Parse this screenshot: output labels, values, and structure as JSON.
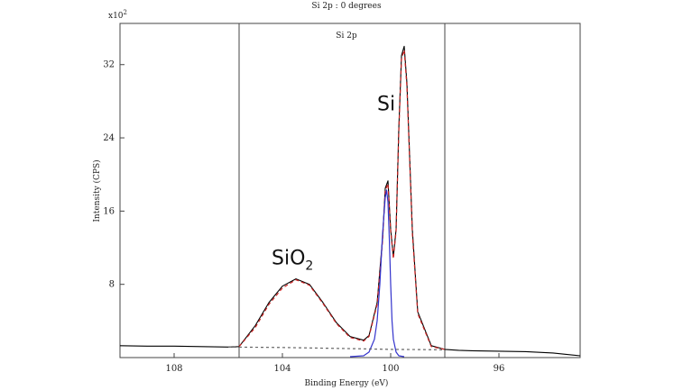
{
  "chart_data": {
    "type": "line",
    "title": "Si 2p : 0 degrees",
    "region_label": "Si 2p",
    "xlabel": "Binding Energy (eV)",
    "ylabel": "Intensity (CPS)",
    "y_multiplier": "x10",
    "y_multiplier_exp": "2",
    "xlim": [
      110.0,
      93.0
    ],
    "ylim": [
      0,
      36.5
    ],
    "x_ticks": [
      108,
      104,
      100,
      96
    ],
    "y_ticks": [
      8,
      16,
      24,
      32
    ],
    "grid": false,
    "region_bounds": [
      105.6,
      98.0
    ],
    "annotations": [
      {
        "text": "Si",
        "x": 100.5,
        "y": 27.0
      },
      {
        "text": "SiO",
        "sub": "2",
        "x": 104.4,
        "y": 10.2
      }
    ],
    "series": [
      {
        "color": "#000000",
        "style": "solid",
        "x": [
          110.0,
          109.0,
          108.0,
          107.0,
          106.0,
          105.6,
          105.0,
          104.5,
          104.0,
          103.5,
          103.0,
          102.5,
          102.0,
          101.5,
          101.0,
          100.8,
          100.5,
          100.3,
          100.2,
          100.1,
          100.0,
          99.9,
          99.8,
          99.7,
          99.6,
          99.5,
          99.4,
          99.3,
          99.2,
          99.0,
          98.5,
          98.0,
          97.5,
          97.0,
          96.0,
          95.0,
          94.0,
          93.0
        ],
        "y": [
          1.3,
          1.25,
          1.25,
          1.2,
          1.15,
          1.2,
          3.5,
          6.0,
          7.8,
          8.6,
          8.0,
          6.0,
          3.8,
          2.3,
          1.9,
          2.4,
          6.0,
          13.0,
          18.5,
          19.3,
          14.0,
          11.0,
          14.0,
          25.0,
          33.0,
          34.0,
          30.0,
          22.0,
          14.0,
          5.0,
          1.3,
          0.9,
          0.8,
          0.75,
          0.7,
          0.65,
          0.5,
          0.2
        ]
      },
      {
        "color": "#cc2222",
        "style": "dashed",
        "x": [
          105.6,
          105.0,
          104.5,
          104.0,
          103.5,
          103.0,
          102.5,
          102.0,
          101.5,
          101.0,
          100.8,
          100.5,
          100.3,
          100.2,
          100.1,
          100.0,
          99.9,
          99.8,
          99.7,
          99.6,
          99.5,
          99.4,
          99.3,
          99.2,
          99.0,
          98.5,
          98.0
        ],
        "y": [
          1.2,
          3.3,
          5.8,
          7.6,
          8.5,
          7.9,
          5.9,
          3.7,
          2.2,
          1.8,
          2.3,
          5.8,
          12.7,
          18.2,
          19.0,
          13.8,
          10.8,
          13.8,
          24.6,
          32.6,
          33.6,
          29.6,
          21.6,
          13.6,
          4.8,
          1.2,
          0.9
        ]
      },
      {
        "color": "#3333cc",
        "style": "solid",
        "x": [
          101.5,
          101.0,
          100.8,
          100.6,
          100.5,
          100.4,
          100.3,
          100.2,
          100.15,
          100.1,
          100.05,
          100.0,
          99.95,
          99.9,
          99.8,
          99.7,
          99.5
        ],
        "y": [
          0.1,
          0.2,
          0.6,
          2.0,
          4.0,
          8.0,
          13.5,
          17.5,
          18.3,
          17.0,
          13.0,
          8.0,
          4.0,
          2.0,
          0.6,
          0.2,
          0.1
        ]
      },
      {
        "color": "#666666",
        "style": "dashed",
        "x": [
          106.0,
          104.0,
          102.0,
          101.0,
          100.0,
          99.0,
          98.0
        ],
        "y": [
          1.15,
          1.1,
          1.0,
          0.95,
          0.9,
          0.88,
          0.85
        ]
      }
    ]
  }
}
